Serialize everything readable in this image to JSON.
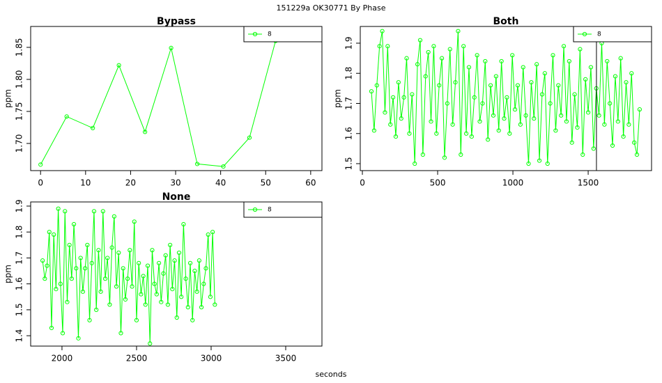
{
  "title": "151229a   OK30771   By Phase",
  "x_label": "seconds",
  "chart_data": [
    {
      "type": "line",
      "title": "Bypass",
      "y_label": "ppm",
      "legend": "topright",
      "xlim": [
        -2.2,
        62.5
      ],
      "ylim": [
        1.6576,
        1.8826
      ],
      "xticks": [
        0,
        10,
        20,
        30,
        40,
        50,
        60
      ],
      "yticks": [
        {
          "value": 1.7,
          "label": "1.70"
        },
        1.75,
        {
          "value": 1.8,
          "label": "1.80"
        },
        1.85
      ],
      "series": [
        {
          "name": "8",
          "color": "#00ff00",
          "x": [
            0,
            5.8,
            11.6,
            17.4,
            23.2,
            29,
            34.8,
            40.6,
            46.4,
            52.2
          ],
          "values": [
            1.667,
            1.742,
            1.724,
            1.822,
            1.718,
            1.849,
            1.668,
            1.664,
            1.709,
            1.86
          ]
        }
      ]
    },
    {
      "type": "line",
      "title": "Both",
      "y_label": "ppm",
      "legend": "topright",
      "xlim": [
        -14,
        1921
      ],
      "ylim": [
        1.4769,
        1.9555
      ],
      "xticks": [
        0,
        500,
        1000,
        1500
      ],
      "yticks": [
        1.5,
        1.6,
        1.7,
        1.8,
        1.9
      ],
      "vlines": [
        1555
      ],
      "vline_color": "#000000",
      "series": [
        {
          "name": "8",
          "color": "#00ff00",
          "x": [
            60,
            78,
            96,
            114,
            132,
            150,
            168,
            186,
            204,
            222,
            240,
            258,
            276,
            294,
            312,
            330,
            348,
            366,
            384,
            402,
            420,
            438,
            456,
            474,
            492,
            510,
            528,
            546,
            564,
            582,
            600,
            618,
            636,
            654,
            672,
            690,
            708,
            726,
            744,
            762,
            780,
            798,
            816,
            834,
            852,
            870,
            888,
            906,
            924,
            942,
            960,
            978,
            996,
            1014,
            1032,
            1050,
            1068,
            1086,
            1104,
            1122,
            1140,
            1158,
            1176,
            1194,
            1212,
            1230,
            1248,
            1266,
            1284,
            1302,
            1320,
            1338,
            1356,
            1374,
            1392,
            1410,
            1428,
            1446,
            1464,
            1482,
            1500,
            1518,
            1536,
            1554,
            1572,
            1590,
            1608,
            1626,
            1644,
            1662,
            1680,
            1698,
            1716,
            1734,
            1752,
            1770,
            1788,
            1806,
            1824,
            1842
          ],
          "values": [
            1.74,
            1.61,
            1.76,
            1.89,
            1.94,
            1.67,
            1.89,
            1.63,
            1.72,
            1.59,
            1.77,
            1.65,
            1.72,
            1.85,
            1.6,
            1.73,
            1.5,
            1.83,
            1.91,
            1.53,
            1.79,
            1.87,
            1.64,
            1.89,
            1.6,
            1.76,
            1.85,
            1.52,
            1.7,
            1.88,
            1.63,
            1.77,
            1.94,
            1.53,
            1.89,
            1.6,
            1.82,
            1.59,
            1.72,
            1.86,
            1.64,
            1.7,
            1.84,
            1.58,
            1.76,
            1.66,
            1.79,
            1.61,
            1.84,
            1.65,
            1.72,
            1.6,
            1.86,
            1.68,
            1.76,
            1.63,
            1.82,
            1.66,
            1.5,
            1.77,
            1.65,
            1.83,
            1.51,
            1.73,
            1.8,
            1.5,
            1.7,
            1.86,
            1.61,
            1.76,
            1.66,
            1.89,
            1.64,
            1.84,
            1.57,
            1.73,
            1.62,
            1.88,
            1.53,
            1.78,
            1.67,
            1.82,
            1.55,
            1.75,
            1.66,
            1.9,
            1.63,
            1.84,
            1.7,
            1.56,
            1.79,
            1.64,
            1.85,
            1.59,
            1.77,
            1.63,
            1.8,
            1.57,
            1.53,
            1.68
          ]
        }
      ]
    },
    {
      "type": "line",
      "title": "None",
      "y_label": "ppm",
      "legend": "topright",
      "xlim": [
        1790,
        3743
      ],
      "ylim": [
        1.36,
        1.916
      ],
      "xticks": [
        2000,
        2500,
        3000,
        3500
      ],
      "yticks": [
        1.4,
        1.5,
        1.6,
        1.7,
        1.8,
        1.9
      ],
      "series": [
        {
          "name": "8",
          "color": "#00ff00",
          "x": [
            1870,
            1885,
            1900,
            1915,
            1930,
            1945,
            1960,
            1975,
            1990,
            2005,
            2020,
            2035,
            2050,
            2065,
            2080,
            2095,
            2110,
            2125,
            2140,
            2155,
            2170,
            2185,
            2200,
            2215,
            2230,
            2245,
            2260,
            2275,
            2290,
            2305,
            2320,
            2335,
            2350,
            2365,
            2380,
            2395,
            2410,
            2425,
            2440,
            2455,
            2470,
            2485,
            2500,
            2515,
            2530,
            2545,
            2560,
            2575,
            2590,
            2605,
            2620,
            2635,
            2650,
            2665,
            2680,
            2695,
            2710,
            2725,
            2740,
            2755,
            2770,
            2785,
            2800,
            2815,
            2830,
            2845,
            2860,
            2875,
            2890,
            2905,
            2920,
            2935,
            2950,
            2965,
            2980,
            2995,
            3010,
            3025
          ],
          "values": [
            1.69,
            1.62,
            1.67,
            1.8,
            1.43,
            1.79,
            1.58,
            1.89,
            1.6,
            1.41,
            1.88,
            1.53,
            1.75,
            1.62,
            1.83,
            1.66,
            1.39,
            1.7,
            1.57,
            1.66,
            1.75,
            1.46,
            1.68,
            1.88,
            1.5,
            1.73,
            1.57,
            1.88,
            1.62,
            1.7,
            1.52,
            1.74,
            1.86,
            1.59,
            1.72,
            1.41,
            1.66,
            1.54,
            1.62,
            1.73,
            1.59,
            1.84,
            1.46,
            1.68,
            1.56,
            1.63,
            1.52,
            1.67,
            1.37,
            1.73,
            1.6,
            1.56,
            1.68,
            1.53,
            1.64,
            1.71,
            1.52,
            1.75,
            1.58,
            1.69,
            1.47,
            1.72,
            1.55,
            1.83,
            1.62,
            1.51,
            1.68,
            1.46,
            1.65,
            1.57,
            1.69,
            1.51,
            1.6,
            1.66,
            1.79,
            1.55,
            1.8,
            1.52
          ]
        }
      ]
    }
  ]
}
